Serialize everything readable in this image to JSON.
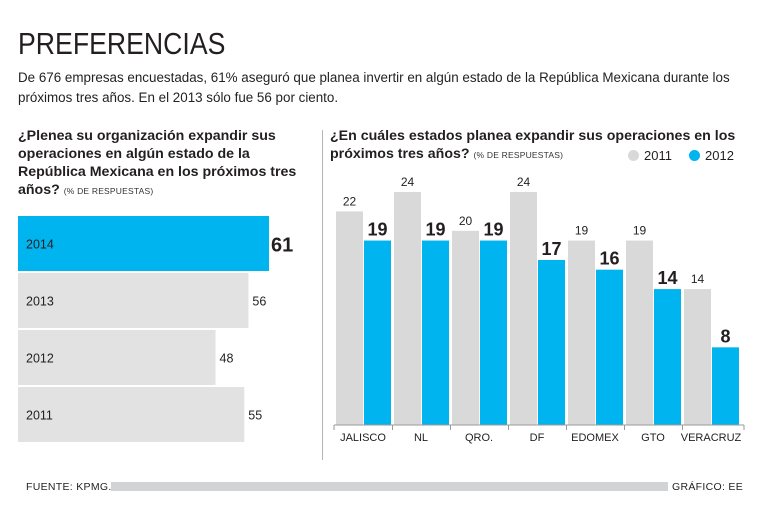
{
  "title": "PREFERENCIAS",
  "subtitle": "De 676 empresas encuestadas, 61% aseguró que planea invertir en algún estado de la República Mexicana durante los próximos tres años. En el 2013 sólo fue 56 por ciento.",
  "left": {
    "question": "¿Plenea su organización expandir sus operaciones en algún estado de la República Mexicana en los próximos tres años?",
    "unit": "(% DE RESPUESTAS)"
  },
  "right": {
    "question": "¿En cuáles estados planea expandir sus operaciones en los próximos tres años?",
    "unit": "(% DE RESPUESTAS)",
    "legend": [
      {
        "label": "2011",
        "color": "#d9d9da"
      },
      {
        "label": "2012",
        "color": "#00b4f0"
      }
    ]
  },
  "footer": {
    "source": "FUENTE: KPMG.",
    "credit": "GRÁFICO: EE"
  },
  "colors": {
    "highlight": "#00b4f0",
    "gray": "#e2e2e3",
    "text": "#231f20"
  },
  "chart_data": [
    {
      "type": "bar",
      "orientation": "horizontal",
      "title": "¿Plenea su organización expandir sus operaciones en algún estado de la República Mexicana en los próximos tres años?",
      "unit": "% de respuestas",
      "categories": [
        "2014",
        "2013",
        "2012",
        "2011"
      ],
      "values": [
        61,
        56,
        48,
        55
      ],
      "highlight": "2014",
      "xlim": [
        0,
        61
      ]
    },
    {
      "type": "bar",
      "orientation": "vertical",
      "title": "¿En cuáles estados planea expandir sus operaciones en los próximos tres años?",
      "unit": "% de respuestas",
      "categories": [
        "JALISCO",
        "NL",
        "QRO.",
        "DF",
        "EDOMEX",
        "GTO",
        "VERACRUZ"
      ],
      "series": [
        {
          "name": "2011",
          "values": [
            22,
            24,
            20,
            24,
            19,
            19,
            14
          ]
        },
        {
          "name": "2012",
          "values": [
            19,
            19,
            19,
            17,
            16,
            14,
            8
          ]
        }
      ],
      "ylim": [
        0,
        24
      ]
    }
  ]
}
